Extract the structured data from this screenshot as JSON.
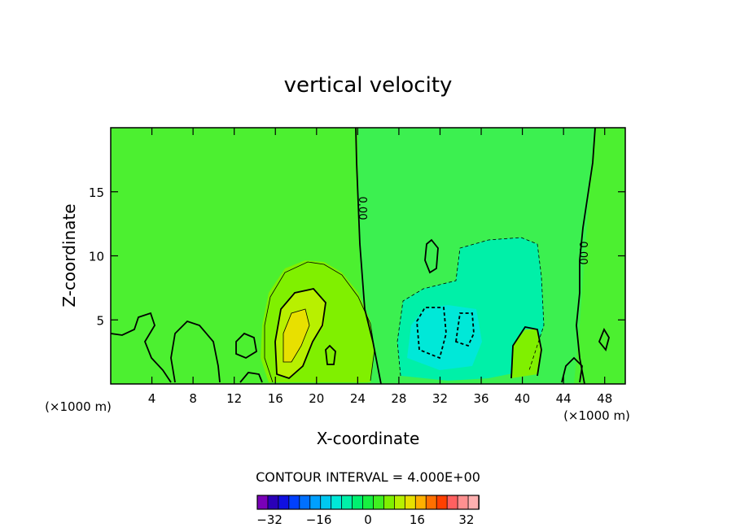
{
  "chart_data": {
    "type": "contour",
    "title": "vertical velocity",
    "xlabel": "X-coordinate",
    "ylabel": "Z-coordinate",
    "x_unit_left": "(×1000 m)",
    "x_unit_right": "(×1000 m)",
    "xlim": [
      0,
      50
    ],
    "ylim": [
      0,
      20
    ],
    "x_ticks": [
      4,
      8,
      12,
      16,
      20,
      24,
      28,
      32,
      36,
      40,
      44,
      48
    ],
    "y_ticks": [
      5,
      10,
      15
    ],
    "contour_interval_label": "CONTOUR INTERVAL = 4.000E+00",
    "contour_interval": 4,
    "zero_contour_labels": [
      "0.00",
      "0.00"
    ],
    "colorbar": {
      "levels": [
        -36,
        -32,
        -28,
        -24,
        -20,
        -16,
        -12,
        -8,
        -4,
        0,
        4,
        8,
        12,
        16,
        20,
        24,
        28,
        32,
        36
      ],
      "tick_labels": [
        "−32",
        "−16",
        "0",
        "16",
        "32"
      ],
      "tick_values": [
        -32,
        -16,
        0,
        16,
        32
      ],
      "colors": [
        "#7a00b8",
        "#2a00b8",
        "#1010e0",
        "#0040ff",
        "#0070ff",
        "#00a0ff",
        "#00c8f0",
        "#00e8d8",
        "#00f0a8",
        "#00f070",
        "#18f040",
        "#40f020",
        "#80f000",
        "#b8f000",
        "#e8e000",
        "#ffb000",
        "#ff7000",
        "#ff4000",
        "#ff6060",
        "#ff9090",
        "#ffb0b0"
      ]
    },
    "background_fill_color": "#4cf030",
    "grid": false
  }
}
